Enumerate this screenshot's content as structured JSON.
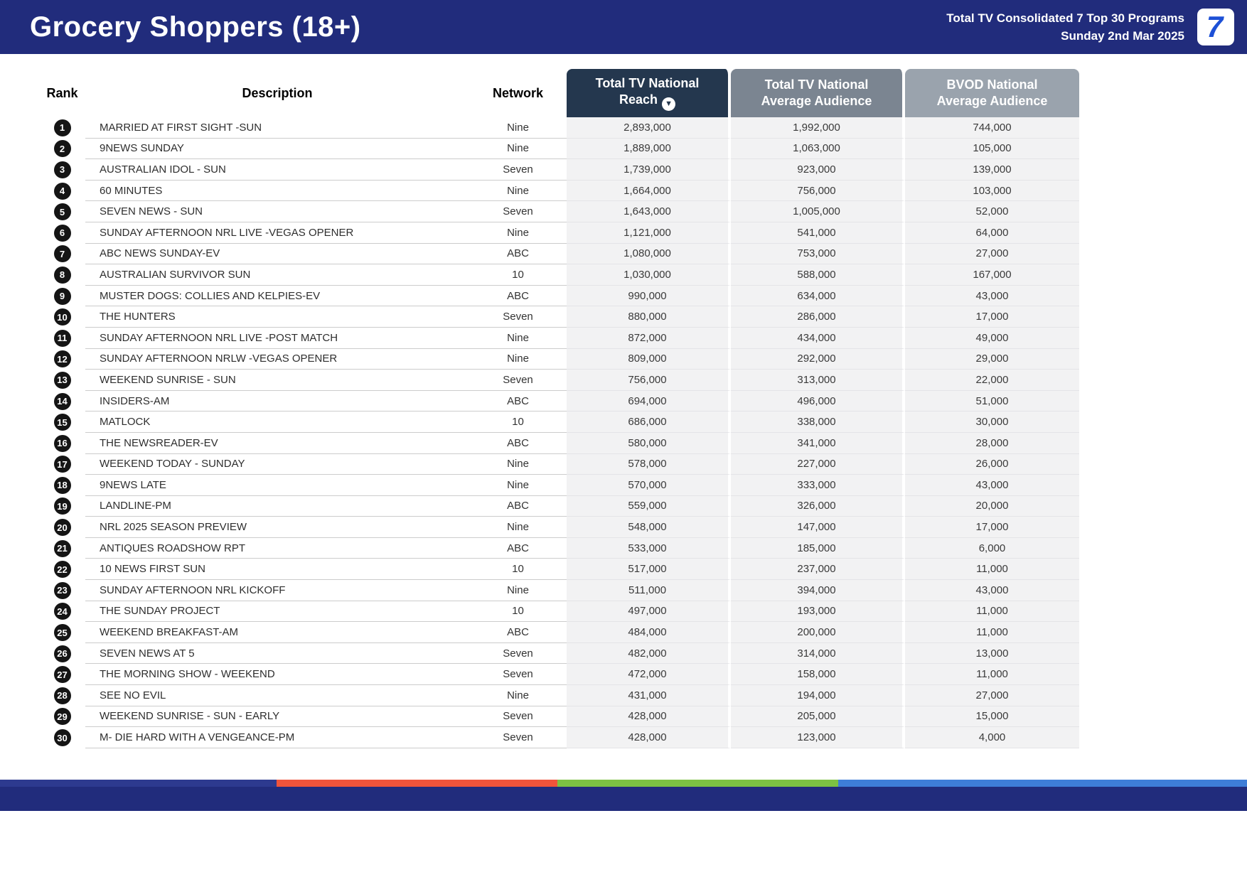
{
  "header": {
    "title": "Grocery Shoppers (18+)",
    "subtitle_line1": "Total TV Consolidated 7 Top 30 Programs",
    "subtitle_line2": "Sunday 2nd Mar 2025",
    "logo_text": "7"
  },
  "colors": {
    "header_bar": "#212C7C",
    "reach_header": "#24374E",
    "avg_header": "#7B8591",
    "bvod_header": "#9AA3AD",
    "logo_blue": "#1D50D6",
    "rank_badge": "#151515"
  },
  "icons": {
    "sort": "arrow-down-circle"
  },
  "table": {
    "columns": {
      "rank": "Rank",
      "description": "Description",
      "network": "Network",
      "reach": "Total TV National Reach",
      "avg": "Total TV National Average Audience",
      "bvod": "BVOD National Average Audience"
    },
    "rows": [
      {
        "rank": 1,
        "description": "MARRIED AT FIRST SIGHT -SUN",
        "network": "Nine",
        "reach": "2,893,000",
        "avg": "1,992,000",
        "bvod": "744,000"
      },
      {
        "rank": 2,
        "description": "9NEWS SUNDAY",
        "network": "Nine",
        "reach": "1,889,000",
        "avg": "1,063,000",
        "bvod": "105,000"
      },
      {
        "rank": 3,
        "description": "AUSTRALIAN IDOL - SUN",
        "network": "Seven",
        "reach": "1,739,000",
        "avg": "923,000",
        "bvod": "139,000"
      },
      {
        "rank": 4,
        "description": "60 MINUTES",
        "network": "Nine",
        "reach": "1,664,000",
        "avg": "756,000",
        "bvod": "103,000"
      },
      {
        "rank": 5,
        "description": "SEVEN NEWS - SUN",
        "network": "Seven",
        "reach": "1,643,000",
        "avg": "1,005,000",
        "bvod": "52,000"
      },
      {
        "rank": 6,
        "description": "SUNDAY AFTERNOON NRL LIVE -VEGAS OPENER",
        "network": "Nine",
        "reach": "1,121,000",
        "avg": "541,000",
        "bvod": "64,000"
      },
      {
        "rank": 7,
        "description": "ABC NEWS SUNDAY-EV",
        "network": "ABC",
        "reach": "1,080,000",
        "avg": "753,000",
        "bvod": "27,000"
      },
      {
        "rank": 8,
        "description": "AUSTRALIAN SURVIVOR SUN",
        "network": "10",
        "reach": "1,030,000",
        "avg": "588,000",
        "bvod": "167,000"
      },
      {
        "rank": 9,
        "description": "MUSTER DOGS: COLLIES AND KELPIES-EV",
        "network": "ABC",
        "reach": "990,000",
        "avg": "634,000",
        "bvod": "43,000"
      },
      {
        "rank": 10,
        "description": "THE HUNTERS",
        "network": "Seven",
        "reach": "880,000",
        "avg": "286,000",
        "bvod": "17,000"
      },
      {
        "rank": 11,
        "description": "SUNDAY AFTERNOON NRL LIVE -POST MATCH",
        "network": "Nine",
        "reach": "872,000",
        "avg": "434,000",
        "bvod": "49,000"
      },
      {
        "rank": 12,
        "description": "SUNDAY AFTERNOON NRLW -VEGAS OPENER",
        "network": "Nine",
        "reach": "809,000",
        "avg": "292,000",
        "bvod": "29,000"
      },
      {
        "rank": 13,
        "description": "WEEKEND SUNRISE - SUN",
        "network": "Seven",
        "reach": "756,000",
        "avg": "313,000",
        "bvod": "22,000"
      },
      {
        "rank": 14,
        "description": "INSIDERS-AM",
        "network": "ABC",
        "reach": "694,000",
        "avg": "496,000",
        "bvod": "51,000"
      },
      {
        "rank": 15,
        "description": "MATLOCK",
        "network": "10",
        "reach": "686,000",
        "avg": "338,000",
        "bvod": "30,000"
      },
      {
        "rank": 16,
        "description": "THE NEWSREADER-EV",
        "network": "ABC",
        "reach": "580,000",
        "avg": "341,000",
        "bvod": "28,000"
      },
      {
        "rank": 17,
        "description": "WEEKEND TODAY - SUNDAY",
        "network": "Nine",
        "reach": "578,000",
        "avg": "227,000",
        "bvod": "26,000"
      },
      {
        "rank": 18,
        "description": "9NEWS LATE",
        "network": "Nine",
        "reach": "570,000",
        "avg": "333,000",
        "bvod": "43,000"
      },
      {
        "rank": 19,
        "description": "LANDLINE-PM",
        "network": "ABC",
        "reach": "559,000",
        "avg": "326,000",
        "bvod": "20,000"
      },
      {
        "rank": 20,
        "description": "NRL 2025 SEASON PREVIEW",
        "network": "Nine",
        "reach": "548,000",
        "avg": "147,000",
        "bvod": "17,000"
      },
      {
        "rank": 21,
        "description": "ANTIQUES ROADSHOW RPT",
        "network": "ABC",
        "reach": "533,000",
        "avg": "185,000",
        "bvod": "6,000"
      },
      {
        "rank": 22,
        "description": "10 NEWS FIRST SUN",
        "network": "10",
        "reach": "517,000",
        "avg": "237,000",
        "bvod": "11,000"
      },
      {
        "rank": 23,
        "description": "SUNDAY AFTERNOON NRL KICKOFF",
        "network": "Nine",
        "reach": "511,000",
        "avg": "394,000",
        "bvod": "43,000"
      },
      {
        "rank": 24,
        "description": "THE SUNDAY PROJECT",
        "network": "10",
        "reach": "497,000",
        "avg": "193,000",
        "bvod": "11,000"
      },
      {
        "rank": 25,
        "description": "WEEKEND BREAKFAST-AM",
        "network": "ABC",
        "reach": "484,000",
        "avg": "200,000",
        "bvod": "11,000"
      },
      {
        "rank": 26,
        "description": "SEVEN NEWS AT 5",
        "network": "Seven",
        "reach": "482,000",
        "avg": "314,000",
        "bvod": "13,000"
      },
      {
        "rank": 27,
        "description": "THE MORNING SHOW - WEEKEND",
        "network": "Seven",
        "reach": "472,000",
        "avg": "158,000",
        "bvod": "11,000"
      },
      {
        "rank": 28,
        "description": "SEE NO EVIL",
        "network": "Nine",
        "reach": "431,000",
        "avg": "194,000",
        "bvod": "27,000"
      },
      {
        "rank": 29,
        "description": "WEEKEND SUNRISE - SUN - EARLY",
        "network": "Seven",
        "reach": "428,000",
        "avg": "205,000",
        "bvod": "15,000"
      },
      {
        "rank": 30,
        "description": "M- DIE HARD WITH A VENGEANCE-PM",
        "network": "Seven",
        "reach": "428,000",
        "avg": "123,000",
        "bvod": "4,000"
      }
    ]
  },
  "footer": {
    "segments": [
      {
        "color": "#2d3a8f",
        "width": "22.2%"
      },
      {
        "color": "#f0543b",
        "width": "22.5%"
      },
      {
        "color": "#7cc243",
        "width": "22.5%"
      },
      {
        "color": "#3e7ed8",
        "width": "32.8%"
      }
    ]
  }
}
